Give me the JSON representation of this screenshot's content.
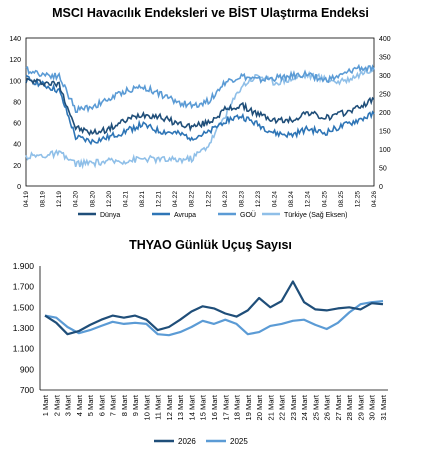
{
  "chart_data": [
    {
      "type": "line",
      "title": "MSCI Havacılık Endeksleri ve BİST Ulaştırma Endeksi",
      "x": [
        "04.19",
        "08.19",
        "12.19",
        "04.20",
        "08.20",
        "12.20",
        "04.21",
        "08.21",
        "12.21",
        "04.22",
        "08.22",
        "12.22",
        "04.23",
        "08.23",
        "12.23",
        "04.24",
        "08.24",
        "12.24",
        "04.25",
        "08.25",
        "12.25",
        "04.26"
      ],
      "ylim": [
        0,
        140
      ],
      "yticks": [
        0,
        20,
        40,
        60,
        80,
        100,
        120,
        140
      ],
      "y2lim": [
        0,
        400
      ],
      "y2ticks": [
        0,
        50,
        100,
        150,
        200,
        250,
        300,
        350,
        400
      ],
      "grid": true,
      "legend": "bottom",
      "series": [
        {
          "name": "Dünya",
          "axis": "left",
          "color": "#1f4e79",
          "values": [
            100,
            98,
            96,
            55,
            50,
            54,
            62,
            68,
            66,
            60,
            56,
            60,
            72,
            76,
            68,
            62,
            62,
            70,
            64,
            68,
            74,
            82
          ]
        },
        {
          "name": "Avrupa",
          "axis": "left",
          "color": "#2e75b6",
          "values": [
            102,
            96,
            90,
            46,
            42,
            46,
            52,
            58,
            52,
            50,
            46,
            50,
            62,
            66,
            58,
            50,
            48,
            54,
            50,
            56,
            62,
            68
          ]
        },
        {
          "name": "GOÜ",
          "axis": "left",
          "color": "#5b9bd5",
          "values": [
            110,
            106,
            104,
            72,
            75,
            82,
            90,
            94,
            88,
            80,
            76,
            80,
            98,
            104,
            100,
            102,
            104,
            106,
            100,
            104,
            112,
            110
          ]
        },
        {
          "name": "Türkiye (Sağ Eksen)",
          "axis": "right",
          "color": "#8fbfe8",
          "values": [
            80,
            82,
            88,
            60,
            62,
            66,
            68,
            74,
            72,
            70,
            74,
            110,
            190,
            270,
            300,
            280,
            290,
            300,
            290,
            280,
            300,
            320
          ]
        }
      ]
    },
    {
      "type": "line",
      "title": "THYAO Günlük Uçuş Sayısı",
      "categories": [
        "1 Mart",
        "2 Mart",
        "3 Mart",
        "4 Mart",
        "5 Mart",
        "6 Mart",
        "7 Mart",
        "8 Mart",
        "9 Mart",
        "10 Mart",
        "11 Mart",
        "12 Mart",
        "13 Mart",
        "14 Mart",
        "15 Mart",
        "16 Mart",
        "17 Mart",
        "18 Mart",
        "19 Mart",
        "20 Mart",
        "21 Mart",
        "22 Mart",
        "23 Mart",
        "24 Mart",
        "25 Mart",
        "26 Mart",
        "27 Mart",
        "28 Mart",
        "29 Mart",
        "30 Mart",
        "31 Mart"
      ],
      "ylim": [
        700,
        1900
      ],
      "yticks": [
        "700",
        "900",
        "1.100",
        "1.300",
        "1.500",
        "1.700",
        "1.900"
      ],
      "legend": "bottom",
      "series": [
        {
          "name": "2026",
          "color": "#1f4e79",
          "values": [
            1420,
            1350,
            1240,
            1270,
            1330,
            1380,
            1420,
            1400,
            1420,
            1380,
            1280,
            1310,
            1380,
            1460,
            1510,
            1490,
            1440,
            1410,
            1470,
            1590,
            1500,
            1560,
            1750,
            1550,
            1480,
            1470,
            1490,
            1500,
            1480,
            1540,
            1530
          ]
        },
        {
          "name": "2025",
          "color": "#5b9bd5",
          "values": [
            1420,
            1400,
            1310,
            1250,
            1280,
            1320,
            1360,
            1340,
            1350,
            1340,
            1240,
            1230,
            1260,
            1310,
            1370,
            1340,
            1380,
            1340,
            1240,
            1260,
            1320,
            1340,
            1370,
            1380,
            1330,
            1290,
            1350,
            1450,
            1530,
            1550,
            1560
          ]
        }
      ]
    }
  ]
}
